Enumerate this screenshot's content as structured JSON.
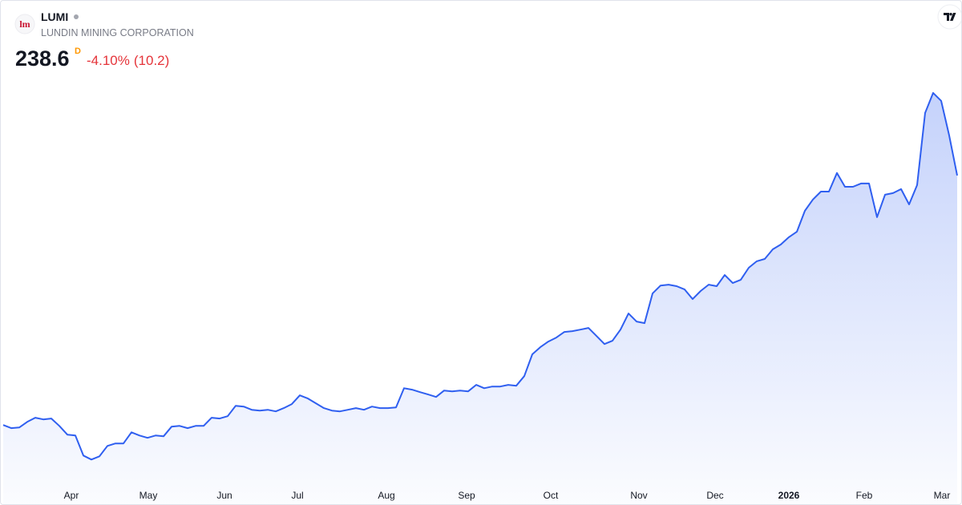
{
  "header": {
    "symbol": "LUMI",
    "name": "LUNDIN MINING CORPORATION",
    "logo": "lm",
    "price": 238.6,
    "interval": "D",
    "change_percent": {
      "value": -4.1,
      "label": "-4.10%"
    },
    "change": {
      "value": 10.2,
      "label": "(10.2)"
    }
  },
  "chart_data": {
    "type": "area",
    "color": "#2f5ff0",
    "values": [
      88.2,
      86.3,
      86.7,
      90.1,
      92.6,
      91.6,
      92.1,
      87.7,
      82.4,
      81.9,
      69.8,
      67.4,
      69.3,
      75.6,
      77.1,
      77.1,
      83.8,
      81.9,
      80.5,
      81.9,
      81.4,
      87.2,
      87.7,
      86.3,
      87.7,
      87.7,
      92.6,
      92.1,
      93.5,
      99.8,
      99.3,
      97.4,
      96.9,
      97.4,
      96.4,
      98.4,
      100.8,
      106.1,
      104.2,
      101.3,
      98.4,
      96.9,
      96.4,
      97.4,
      98.4,
      97.4,
      99.3,
      98.4,
      98.4,
      98.8,
      110.4,
      109.5,
      108.0,
      106.6,
      105.1,
      109.0,
      108.5,
      109.0,
      108.5,
      112.4,
      110.4,
      111.4,
      111.4,
      112.4,
      111.9,
      117.7,
      130.8,
      135.1,
      138.5,
      140.9,
      144.3,
      144.8,
      145.7,
      146.7,
      141.9,
      137.0,
      139.0,
      145.7,
      155.4,
      150.6,
      149.6,
      167.5,
      172.3,
      172.8,
      171.9,
      169.9,
      164.1,
      169.0,
      172.8,
      171.9,
      178.6,
      173.8,
      175.7,
      183.0,
      186.9,
      188.3,
      194.1,
      197.0,
      201.4,
      204.7,
      217.3,
      224.1,
      228.9,
      228.9,
      240.1,
      231.8,
      231.8,
      233.8,
      233.8,
      213.5,
      227.0,
      228.0,
      230.4,
      221.2,
      232.8,
      276.3,
      288.4,
      283.6,
      262.8,
      238.6
    ],
    "xlim": [
      0,
      119
    ],
    "xticks": [
      {
        "value": 8.5,
        "label": "Apr"
      },
      {
        "value": 18.1,
        "label": "May"
      },
      {
        "value": 27.6,
        "label": "Jun"
      },
      {
        "value": 36.7,
        "label": "Jul"
      },
      {
        "value": 47.8,
        "label": "Aug"
      },
      {
        "value": 57.8,
        "label": "Sep"
      },
      {
        "value": 68.3,
        "label": "Oct"
      },
      {
        "value": 79.3,
        "label": "Nov"
      },
      {
        "value": 88.8,
        "label": "Dec"
      },
      {
        "value": 98,
        "label": "2026"
      },
      {
        "value": 107.4,
        "label": "Feb"
      },
      {
        "value": 117.1,
        "label": "Mar"
      }
    ],
    "ylim": [
      54,
      298
    ]
  }
}
